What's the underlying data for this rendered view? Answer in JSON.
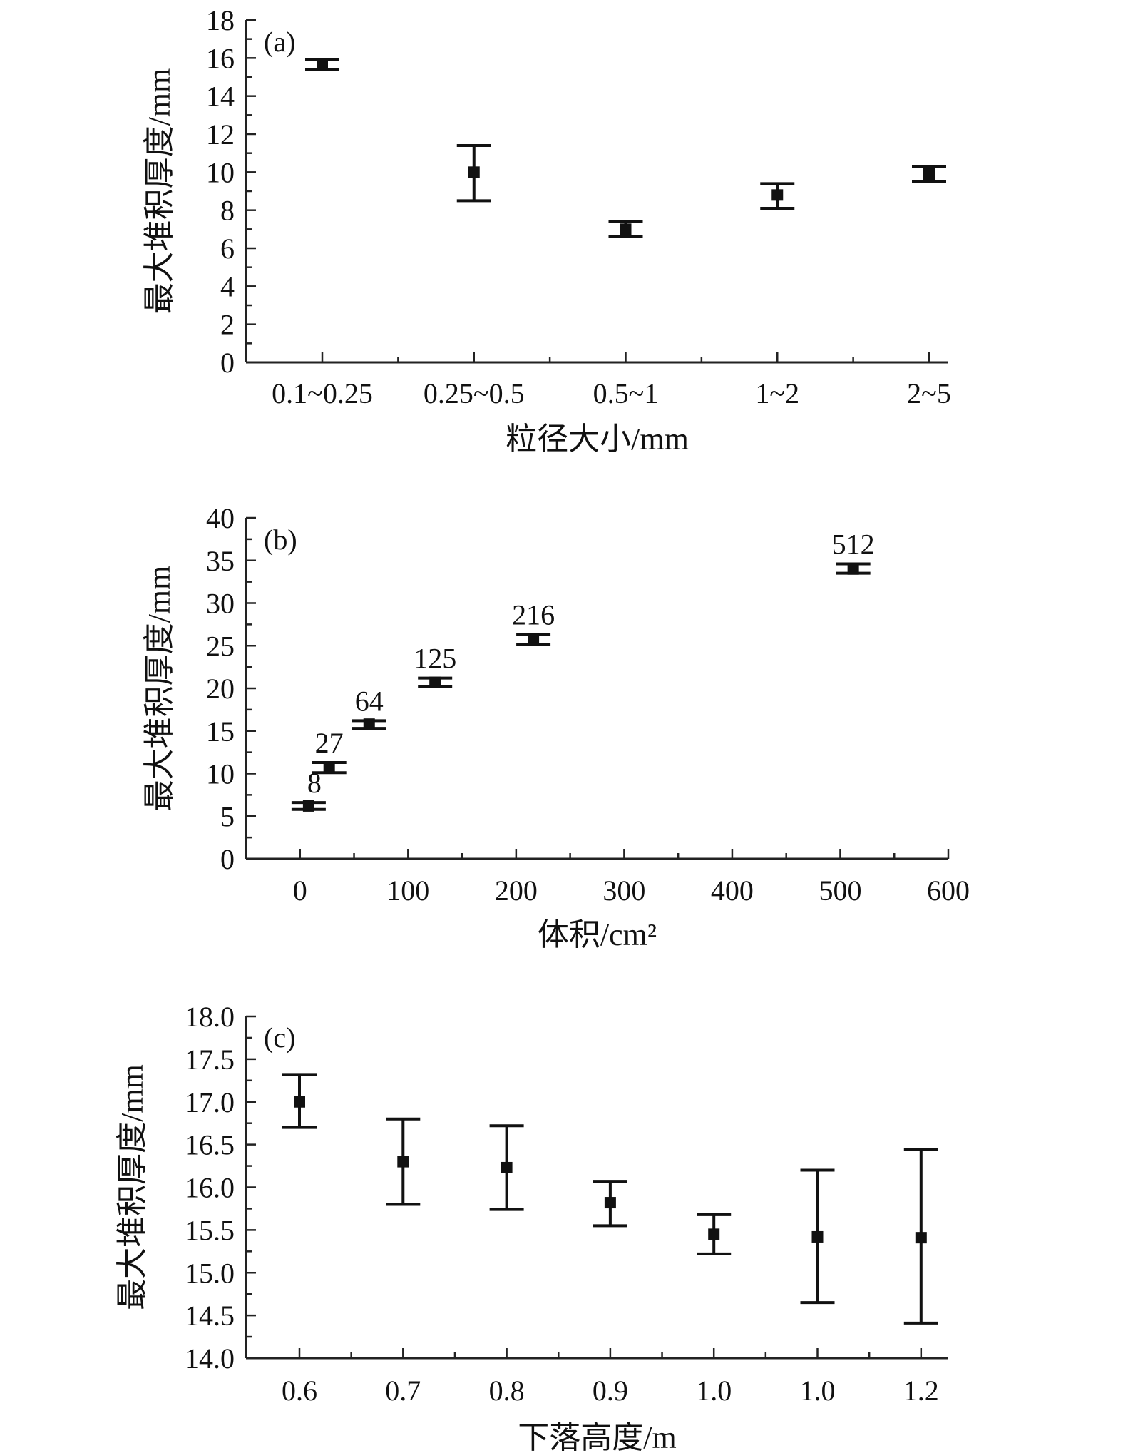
{
  "chart_data": [
    {
      "panel_label": "(a)",
      "type": "scatter",
      "categories": [
        "0.1~0.25",
        "0.25~0.5",
        "0.5~1",
        "1~2",
        "2~5"
      ],
      "values": [
        15.7,
        10.0,
        7.0,
        8.8,
        9.9
      ],
      "error_low": [
        15.4,
        8.5,
        6.6,
        8.1,
        9.5
      ],
      "error_high": [
        15.9,
        11.4,
        7.4,
        9.4,
        10.3
      ],
      "xlabel": "粒径大小/mm",
      "ylabel": "最大堆积厚度/mm",
      "ylim": [
        0,
        18
      ],
      "yticks": [
        0,
        2,
        4,
        6,
        8,
        10,
        12,
        14,
        16,
        18
      ],
      "grid": false
    },
    {
      "panel_label": "(b)",
      "type": "scatter",
      "x": [
        8,
        27,
        64,
        125,
        216,
        512
      ],
      "values": [
        6.2,
        10.7,
        15.8,
        20.7,
        25.7,
        34.0
      ],
      "error_low": [
        5.8,
        10.1,
        15.3,
        20.2,
        25.1,
        33.5
      ],
      "error_high": [
        6.6,
        11.3,
        16.2,
        21.2,
        26.3,
        34.6
      ],
      "point_labels": [
        "8",
        "27",
        "64",
        "125",
        "216",
        "512"
      ],
      "xlabel": "体积/cm²",
      "ylabel": "最大堆积厚度/mm",
      "xlim": [
        -50,
        600
      ],
      "xticks": [
        0,
        100,
        200,
        300,
        400,
        500,
        600
      ],
      "ylim": [
        0,
        40
      ],
      "yticks": [
        0,
        5,
        10,
        15,
        20,
        25,
        30,
        35,
        40
      ],
      "grid": false
    },
    {
      "panel_label": "(c)",
      "type": "scatter",
      "categories": [
        "0.6",
        "0.7",
        "0.8",
        "0.9",
        "1.0",
        "1.0",
        "1.2"
      ],
      "values": [
        17.0,
        16.3,
        16.23,
        15.82,
        15.45,
        15.42,
        15.41
      ],
      "error_low": [
        16.7,
        15.8,
        15.74,
        15.55,
        15.22,
        14.65,
        14.41
      ],
      "error_high": [
        17.32,
        16.8,
        16.72,
        16.07,
        15.68,
        16.2,
        16.44
      ],
      "xlabel": "下落高度/m",
      "ylabel": "最大堆积厚度/mm",
      "ylim": [
        14.0,
        18.0
      ],
      "yticks": [
        "14.0",
        "14.5",
        "15.0",
        "15.5",
        "16.0",
        "16.5",
        "17.0",
        "17.5",
        "18.0"
      ],
      "grid": false
    }
  ]
}
